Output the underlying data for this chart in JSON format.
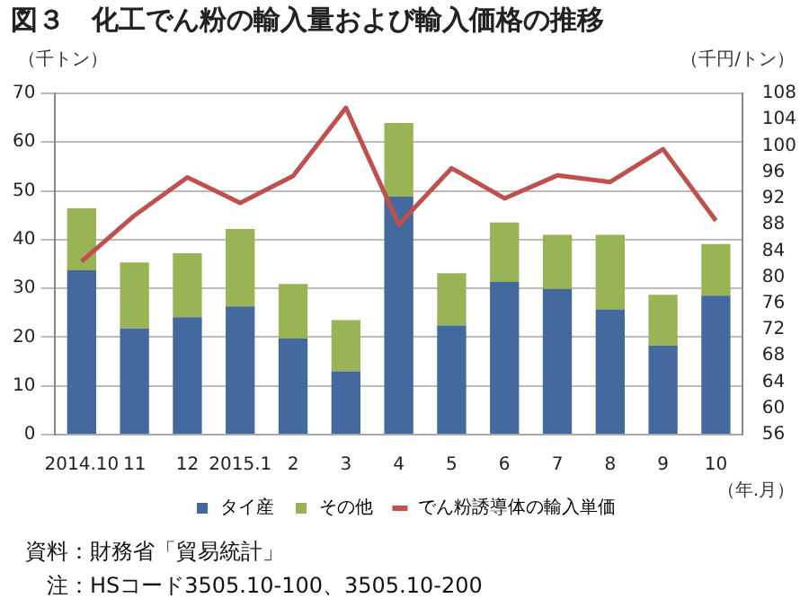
{
  "chart_data": {
    "type": "bar",
    "title": "図３　化工でん粉の輸入量および輸入価格の推移",
    "ylabel": "（千トン）",
    "y2label": "（千円/トン）",
    "xlabel": "（年.月）",
    "categories": [
      "2014.10",
      "11",
      "12",
      "2015.1",
      "2",
      "3",
      "4",
      "5",
      "6",
      "7",
      "8",
      "9",
      "10"
    ],
    "stacked": true,
    "series": [
      {
        "name": "タイ産",
        "color": "#44699e",
        "values": [
          33.7,
          21.8,
          24.1,
          26.3,
          19.7,
          13.0,
          48.8,
          22.4,
          31.3,
          29.9,
          25.7,
          18.3,
          28.5
        ]
      },
      {
        "name": "その他",
        "color": "#98b455",
        "values": [
          12.7,
          13.5,
          13.1,
          15.9,
          11.2,
          10.5,
          15.1,
          10.7,
          12.2,
          11.1,
          15.3,
          10.4,
          10.6
        ]
      },
      {
        "name": "でん粉誘導体の輸入単価",
        "type": "line",
        "axis": "y2",
        "color": "#c0504d",
        "values": [
          82.4,
          89.4,
          95.2,
          91.3,
          95.4,
          105.8,
          88.0,
          96.6,
          92.0,
          95.5,
          94.5,
          99.5,
          88.6
        ]
      }
    ],
    "ylim": [
      0,
      70
    ],
    "yticks": [
      0,
      10,
      20,
      30,
      40,
      50,
      60,
      70
    ],
    "y2lim": [
      56,
      108
    ],
    "y2ticks": [
      56,
      60,
      64,
      68,
      72,
      76,
      80,
      84,
      88,
      92,
      96,
      100,
      104,
      108
    ],
    "grid": "y",
    "legend": "bottom",
    "marker": "none",
    "annotations": [
      "資料：財務省「貿易統計」",
      "注：HSコード3505.10-100、3505.10-200"
    ]
  }
}
